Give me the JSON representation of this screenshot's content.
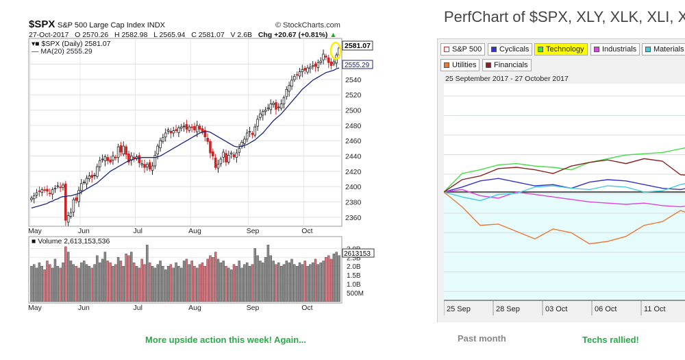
{
  "left_header": {
    "symbol": "$SPX",
    "name": "S&P 500 Large Cap Index",
    "exchange": "INDX",
    "watermark": "© StockCharts.com",
    "date": "27-Oct-2017",
    "open": "O 2570.26",
    "high": "H 2582.98",
    "low": "L 2565.94",
    "close": "C 2581.07",
    "volume": "V 2.6B",
    "change": "Chg +20.67 (+0.81%)",
    "legend_daily": "$SPX (Daily) 2581.07",
    "legend_ma": "MA(20) 2555.29",
    "legend_volume": "Volume 2,613,153,536",
    "last_price_label": "2581.07",
    "ma_label": "2555.29",
    "vol_label": "2613153"
  },
  "chart_data": [
    {
      "type": "candlestick",
      "title": "$SPX",
      "x_labels": [
        "May",
        "Jun",
        "Jul",
        "Aug",
        "Sep",
        "Oct"
      ],
      "y_ticks": [
        2360,
        2380,
        2400,
        2420,
        2440,
        2460,
        2480,
        2500,
        2520,
        2540,
        2560
      ],
      "ylim": [
        2350,
        2590
      ],
      "close": [
        2385,
        2388,
        2392,
        2394,
        2396,
        2395,
        2394,
        2391,
        2396,
        2398,
        2401,
        2399,
        2402,
        2356,
        2362,
        2366,
        2383,
        2382,
        2395,
        2404,
        2406,
        2411,
        2414,
        2412,
        2415,
        2426,
        2434,
        2436,
        2439,
        2434,
        2432,
        2440,
        2438,
        2452,
        2445,
        2453,
        2442,
        2432,
        2440,
        2437,
        2439,
        2431,
        2430,
        2425,
        2429,
        2423,
        2427,
        2441,
        2453,
        2460,
        2464,
        2470,
        2474,
        2470,
        2473,
        2473,
        2477,
        2478,
        2479,
        2475,
        2478,
        2477,
        2474,
        2480,
        2475,
        2471,
        2465,
        2459,
        2444,
        2440,
        2425,
        2429,
        2436,
        2445,
        2432,
        2441,
        2444,
        2439,
        2444,
        2450,
        2458,
        2462,
        2470,
        2472,
        2468,
        2478,
        2488,
        2495,
        2498,
        2500,
        2503,
        2508,
        2509,
        2501,
        2504,
        2508,
        2516,
        2527,
        2532,
        2539,
        2544,
        2546,
        2550,
        2553,
        2552,
        2555,
        2556,
        2558,
        2557,
        2562,
        2564,
        2573,
        2569,
        2562,
        2558,
        2563,
        2572,
        2581
      ],
      "ma20": [
        2372,
        2373,
        2374,
        2375,
        2376,
        2377,
        2378,
        2380,
        2381,
        2383,
        2384,
        2386,
        2387,
        2387,
        2388,
        2388,
        2389,
        2390,
        2391,
        2393,
        2395,
        2397,
        2399,
        2401,
        2403,
        2405,
        2408,
        2411,
        2414,
        2417,
        2420,
        2422,
        2424,
        2426,
        2428,
        2430,
        2432,
        2434,
        2435,
        2436,
        2437,
        2437,
        2438,
        2438,
        2438,
        2438,
        2438,
        2438,
        2439,
        2440,
        2442,
        2444,
        2446,
        2448,
        2450,
        2452,
        2454,
        2456,
        2458,
        2460,
        2462,
        2464,
        2466,
        2468,
        2470,
        2471,
        2472,
        2472,
        2471,
        2469,
        2467,
        2465,
        2463,
        2461,
        2459,
        2457,
        2455,
        2453,
        2452,
        2452,
        2453,
        2454,
        2455,
        2457,
        2459,
        2461,
        2464,
        2467,
        2470,
        2474,
        2478,
        2482,
        2486,
        2489,
        2492,
        2495,
        2499,
        2503,
        2507,
        2511,
        2515,
        2519,
        2523,
        2527,
        2530,
        2533,
        2536,
        2539,
        2541,
        2543,
        2545,
        2547,
        2549,
        2550,
        2551,
        2552,
        2554,
        2555
      ]
    },
    {
      "type": "bar",
      "title": "Volume",
      "y_ticks": [
        "3.0B",
        "2.5B",
        "2.0B",
        "1.5B",
        "1.0B",
        "500M"
      ],
      "values": [
        2.0,
        2.1,
        1.9,
        2.2,
        2.0,
        1.8,
        2.3,
        2.1,
        1.9,
        2.4,
        2.0,
        1.9,
        2.2,
        3.1,
        2.8,
        2.3,
        2.1,
        2.0,
        1.9,
        2.2,
        2.3,
        2.1,
        2.0,
        1.9,
        2.1,
        2.6,
        2.2,
        2.4,
        2.8,
        2.3,
        2.2,
        2.0,
        2.1,
        2.5,
        2.3,
        2.0,
        2.7,
        2.6,
        2.8,
        2.2,
        2.0,
        1.9,
        2.4,
        2.1,
        3.2,
        2.2,
        2.0,
        1.9,
        2.1,
        2.3,
        2.0,
        1.8,
        2.0,
        2.1,
        1.9,
        2.2,
        2.0,
        1.9,
        2.3,
        2.4,
        2.1,
        2.3,
        2.0,
        1.9,
        2.1,
        2.2,
        2.0,
        2.4,
        2.6,
        2.5,
        2.8,
        2.4,
        2.2,
        2.3,
        2.0,
        1.9,
        1.8,
        2.1,
        2.0,
        2.3,
        1.9,
        2.1,
        2.2,
        2.0,
        2.1,
        3.0,
        2.6,
        2.3,
        2.2,
        2.5,
        3.2,
        2.6,
        2.3,
        2.1,
        2.2,
        2.0,
        2.1,
        2.3,
        2.2,
        2.4,
        2.1,
        2.0,
        2.2,
        2.1,
        2.3,
        2.0,
        2.1,
        2.2,
        2.4,
        2.1,
        2.2,
        2.3,
        2.5,
        2.6,
        2.4,
        2.7,
        2.8,
        2.6
      ]
    },
    {
      "type": "line",
      "title": "PerfChart of $SPX, XLY, XLK, XLI, XL",
      "date_range": "25 September 2017 - 27 October 2017",
      "x_labels": [
        "25 Sep",
        "28 Sep",
        "03 Oct",
        "06 Oct",
        "11 Oct"
      ],
      "series": [
        {
          "name": "S&P 500",
          "color": "#222222",
          "values": [
            0,
            0,
            0,
            0,
            0,
            0,
            0,
            0,
            0,
            0,
            0,
            0,
            0,
            0,
            0
          ]
        },
        {
          "name": "Cyclicals",
          "color": "#3333cc",
          "values": [
            0,
            0.4,
            0.9,
            1.1,
            0.8,
            0.5,
            0.6,
            0.3,
            0.8,
            1.0,
            0.9,
            0.6,
            0.3,
            0.2,
            0.5
          ]
        },
        {
          "name": "Technology",
          "color": "#44dd44",
          "values": [
            0,
            1.5,
            1.8,
            2.2,
            2.3,
            2.1,
            2.0,
            1.8,
            2.4,
            2.7,
            3.0,
            3.1,
            3.2,
            3.5,
            3.8
          ]
        },
        {
          "name": "Industrials",
          "color": "#dd44dd",
          "values": [
            0,
            0.2,
            -0.3,
            -0.5,
            0,
            -0.2,
            -0.4,
            -0.6,
            -0.8,
            -0.9,
            -1.0,
            -0.9,
            -1.1,
            -1.2,
            -1.0
          ]
        },
        {
          "name": "Materials",
          "color": "#44ccdd",
          "values": [
            0,
            -0.4,
            -0.7,
            -0.2,
            -0.1,
            0.4,
            0.5,
            0.3,
            0.2,
            0.5,
            0.4,
            0.0,
            0.1,
            0.6,
            0.9
          ]
        },
        {
          "name": "Utilities",
          "color": "#ee7733",
          "values": [
            0,
            -1.2,
            -2.7,
            -2.6,
            -3.2,
            -3.8,
            -3.0,
            -3.3,
            -4.2,
            -4.0,
            -3.6,
            -2.7,
            -2.4,
            -1.5,
            -2.0
          ]
        },
        {
          "name": "Financials",
          "color": "#882222",
          "values": [
            0,
            1.0,
            1.3,
            1.9,
            2.0,
            1.8,
            1.5,
            2.1,
            2.4,
            2.6,
            2.3,
            2.7,
            2.5,
            1.4,
            1.3
          ]
        }
      ]
    }
  ],
  "perfchart": {
    "title": "PerfChart of $SPX, XLY, XLK, XLI, XL",
    "date_range": "25 September 2017 - 27 October 2017",
    "buttons": [
      "S&P 500",
      "Cyclicals",
      "Technology",
      "Industrials",
      "Materials",
      "Utilities",
      "Financials"
    ],
    "highlight_color": "#ffff00"
  },
  "captions": {
    "left": "More upside action this week!  Again...",
    "middle": "Past month",
    "right": "Techs rallied!"
  }
}
